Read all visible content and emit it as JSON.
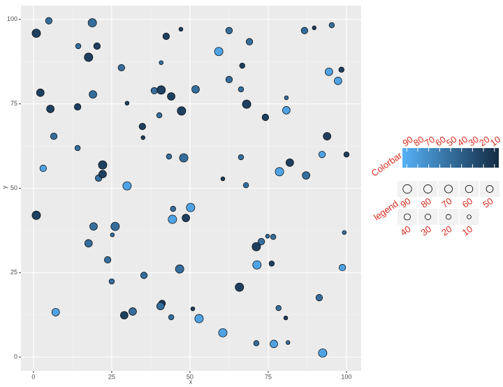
{
  "chart_data": {
    "type": "scatter",
    "x_label": "x",
    "y_label": "y",
    "x": [
      0.9,
      4.9,
      18.8,
      20.3,
      14.3,
      17.6,
      28.1,
      42.4,
      47.1,
      62.5,
      59.2,
      69.0,
      86.6,
      89.7,
      95.3,
      66.7,
      40.8,
      94.4,
      98.4,
      97.3,
      2.2,
      5.4,
      14.1,
      19.0,
      29.9,
      38.6,
      40.8,
      44.0,
      51.8,
      62.5,
      66.3,
      68.1,
      47.3,
      40.2,
      34.8,
      74.1,
      80.8,
      80.8,
      6.5,
      14.1,
      22.1,
      20.8,
      22.1,
      3.1,
      35.0,
      43.3,
      48.0,
      66.3,
      81.9,
      92.2,
      93.8,
      100.0,
      87.1,
      78.6,
      67.9,
      60.5,
      29.9,
      0.9,
      19.2,
      26.1,
      44.6,
      44.4,
      48.7,
      50.2,
      25.2,
      17.6,
      74.8,
      72.8,
      71.2,
      76.6,
      71.4,
      76.1,
      98.7,
      99.3,
      23.7,
      25.0,
      35.3,
      46.7,
      65.8,
      41.1,
      40.6,
      31.7,
      29.0,
      44.0,
      50.9,
      52.9,
      7.1,
      91.3,
      78.3,
      80.6,
      60.5,
      71.2,
      76.8,
      81.3,
      92.4
    ],
    "y": [
      95.9,
      99.6,
      99.0,
      92.1,
      92.1,
      88.8,
      85.7,
      95.0,
      97.1,
      96.7,
      90.5,
      93.4,
      96.7,
      97.5,
      98.3,
      86.3,
      87.2,
      84.5,
      85.1,
      81.8,
      78.3,
      73.5,
      74.1,
      77.8,
      75.2,
      78.9,
      79.1,
      77.2,
      79.3,
      82.2,
      79.3,
      74.9,
      72.9,
      71.6,
      68.3,
      71.0,
      76.8,
      73.1,
      65.4,
      61.9,
      56.9,
      53.0,
      54.2,
      55.9,
      65.0,
      59.4,
      59.0,
      59.2,
      57.6,
      60.0,
      65.4,
      60.0,
      53.8,
      54.9,
      50.9,
      52.8,
      50.7,
      42.0,
      38.7,
      38.7,
      43.9,
      40.8,
      41.2,
      44.3,
      36.2,
      33.7,
      35.8,
      34.2,
      32.7,
      35.6,
      27.3,
      27.7,
      26.5,
      36.9,
      28.8,
      22.4,
      24.2,
      26.1,
      20.7,
      15.9,
      15.1,
      13.5,
      12.4,
      11.8,
      14.3,
      11.4,
      13.3,
      17.6,
      14.5,
      11.6,
      7.2,
      4.1,
      3.9,
      4.3,
      1.2
    ],
    "size": [
      85,
      45,
      85,
      45,
      25,
      85,
      45,
      45,
      10,
      45,
      85,
      45,
      45,
      10,
      25,
      25,
      10,
      65,
      25,
      65,
      65,
      65,
      45,
      65,
      10,
      45,
      85,
      65,
      65,
      45,
      25,
      85,
      85,
      25,
      45,
      45,
      10,
      65,
      45,
      25,
      85,
      45,
      65,
      45,
      10,
      25,
      85,
      25,
      65,
      45,
      65,
      25,
      65,
      85,
      25,
      10,
      85,
      85,
      65,
      85,
      25,
      85,
      65,
      85,
      10,
      65,
      10,
      45,
      85,
      25,
      85,
      25,
      45,
      10,
      45,
      25,
      45,
      85,
      85,
      45,
      65,
      65,
      65,
      25,
      10,
      85,
      65,
      45,
      25,
      10,
      85,
      25,
      65,
      10,
      85
    ],
    "color": [
      20,
      50,
      50,
      20,
      50,
      20,
      50,
      20,
      20,
      50,
      85,
      50,
      50,
      20,
      50,
      20,
      50,
      85,
      20,
      85,
      20,
      20,
      20,
      50,
      20,
      50,
      20,
      20,
      50,
      50,
      50,
      20,
      20,
      50,
      20,
      20,
      50,
      85,
      50,
      50,
      20,
      50,
      20,
      85,
      20,
      50,
      50,
      50,
      20,
      85,
      20,
      20,
      50,
      85,
      50,
      20,
      85,
      20,
      50,
      50,
      50,
      85,
      20,
      85,
      50,
      50,
      50,
      50,
      20,
      50,
      85,
      20,
      85,
      50,
      50,
      50,
      50,
      50,
      20,
      20,
      50,
      50,
      20,
      50,
      20,
      85,
      85,
      50,
      50,
      20,
      85,
      50,
      85,
      50,
      85
    ],
    "xlim": [
      -4,
      104.7
    ],
    "ylim": [
      -4.1,
      104.1
    ],
    "xticks": [
      0,
      25,
      50,
      75,
      100
    ],
    "yticks": [
      0,
      25,
      50,
      75,
      100
    ],
    "grid": true,
    "colorbar": {
      "title": "Colorbar",
      "low_color": "#132b43",
      "high_color": "#56b1f7",
      "lim": [
        6,
        94
      ],
      "ticks": [
        90,
        80,
        70,
        60,
        50,
        40,
        30,
        20,
        10
      ]
    },
    "size_legend": {
      "title": "legend",
      "breaks": [
        90,
        80,
        70,
        60,
        50,
        40,
        30,
        20,
        10
      ]
    }
  }
}
